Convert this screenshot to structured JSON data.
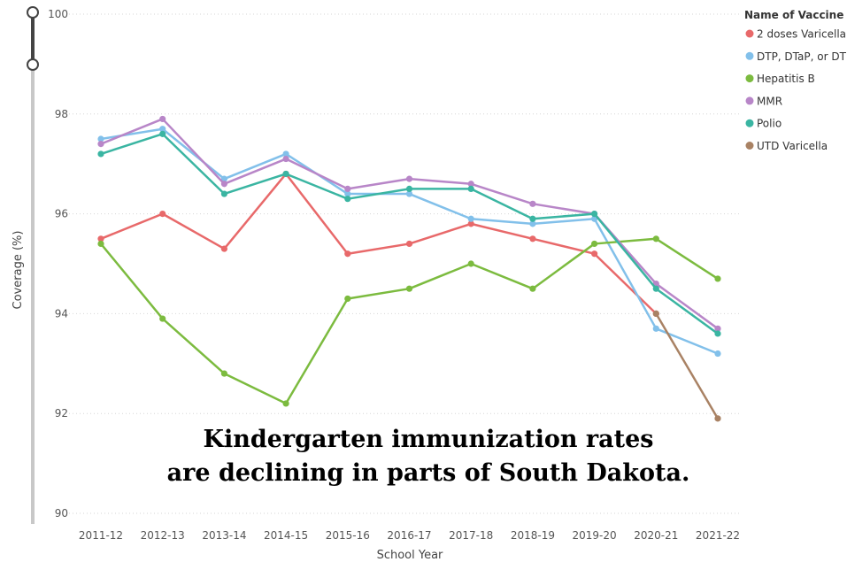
{
  "chart_data": {
    "type": "line",
    "title": "",
    "xlabel": "School Year",
    "ylabel": "Coverage (%)",
    "ylim": [
      90,
      100
    ],
    "yticks": [
      90,
      92,
      94,
      96,
      98,
      100
    ],
    "grid": "horizontal dotted",
    "categories": [
      "2011-12",
      "2012-13",
      "2013-14",
      "2014-15",
      "2015-16",
      "2016-17",
      "2017-18",
      "2018-19",
      "2019-20",
      "2020-21",
      "2021-22"
    ],
    "legend": {
      "title": "Name of Vaccine",
      "position": "top-right"
    },
    "series": [
      {
        "name": "2 doses Varicella",
        "color": "#E8696A",
        "values": [
          95.5,
          96.0,
          95.3,
          96.8,
          95.2,
          95.4,
          95.8,
          95.5,
          95.2,
          94.0,
          null
        ]
      },
      {
        "name": "DTP, DTaP, or DT",
        "color": "#82C0EA",
        "values": [
          97.5,
          97.7,
          96.7,
          97.2,
          96.4,
          96.4,
          95.9,
          95.8,
          95.9,
          93.7,
          93.2
        ]
      },
      {
        "name": "Hepatitis B",
        "color": "#7CBB3F",
        "values": [
          95.4,
          93.9,
          92.8,
          92.2,
          94.3,
          94.5,
          95.0,
          94.5,
          95.4,
          95.5,
          94.7
        ]
      },
      {
        "name": "MMR",
        "color": "#B886C8",
        "values": [
          97.4,
          97.9,
          96.6,
          97.1,
          96.5,
          96.7,
          96.6,
          96.2,
          96.0,
          94.6,
          93.7
        ]
      },
      {
        "name": "Polio",
        "color": "#3AB5A2",
        "values": [
          97.2,
          97.6,
          96.4,
          96.8,
          96.3,
          96.5,
          96.5,
          95.9,
          96.0,
          94.5,
          93.6
        ]
      },
      {
        "name": "UTD Varicella",
        "color": "#A98264",
        "values": [
          null,
          null,
          null,
          null,
          null,
          null,
          null,
          null,
          null,
          94.0,
          91.9
        ]
      }
    ],
    "annotation": [
      "Kindergarten immunization rates",
      "are declining in parts of South Dakota."
    ]
  }
}
